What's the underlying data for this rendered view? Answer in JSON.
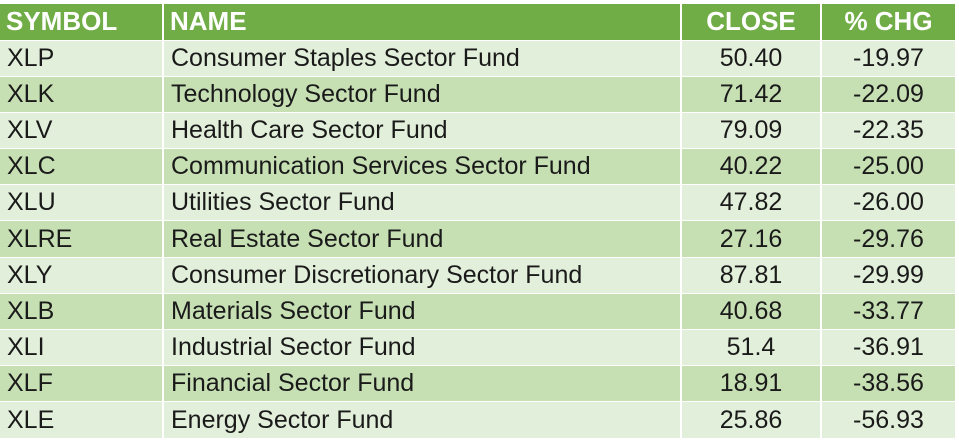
{
  "table": {
    "headers": [
      "SYMBOL",
      "NAME",
      "CLOSE",
      "% CHG"
    ],
    "rows": [
      {
        "symbol": "XLP",
        "name": "Consumer Staples Sector Fund",
        "close": "50.40",
        "chg": "-19.97"
      },
      {
        "symbol": "XLK",
        "name": "Technology Sector Fund",
        "close": "71.42",
        "chg": "-22.09"
      },
      {
        "symbol": "XLV",
        "name": "Health Care Sector Fund",
        "close": "79.09",
        "chg": "-22.35"
      },
      {
        "symbol": "XLC",
        "name": "Communication Services Sector Fund",
        "close": "40.22",
        "chg": "-25.00"
      },
      {
        "symbol": "XLU",
        "name": "Utilities Sector Fund",
        "close": "47.82",
        "chg": "-26.00"
      },
      {
        "symbol": "XLRE",
        "name": "Real Estate Sector Fund",
        "close": "27.16",
        "chg": "-29.76"
      },
      {
        "symbol": "XLY",
        "name": "Consumer Discretionary Sector Fund",
        "close": "87.81",
        "chg": "-29.99"
      },
      {
        "symbol": "XLB",
        "name": "Materials Sector Fund",
        "close": "40.68",
        "chg": "-33.77"
      },
      {
        "symbol": "XLI",
        "name": "Industrial Sector Fund",
        "close": "51.4",
        "chg": "-36.91"
      },
      {
        "symbol": "XLF",
        "name": "Financial Sector Fund",
        "close": "18.91",
        "chg": "-38.56"
      },
      {
        "symbol": "XLE",
        "name": "Energy Sector Fund",
        "close": "25.86",
        "chg": "-56.93"
      }
    ]
  },
  "colors": {
    "header_bg": "#70ad47",
    "header_text": "#ffffff",
    "row_light": "#e2efda",
    "row_dark": "#c6e0b4"
  }
}
